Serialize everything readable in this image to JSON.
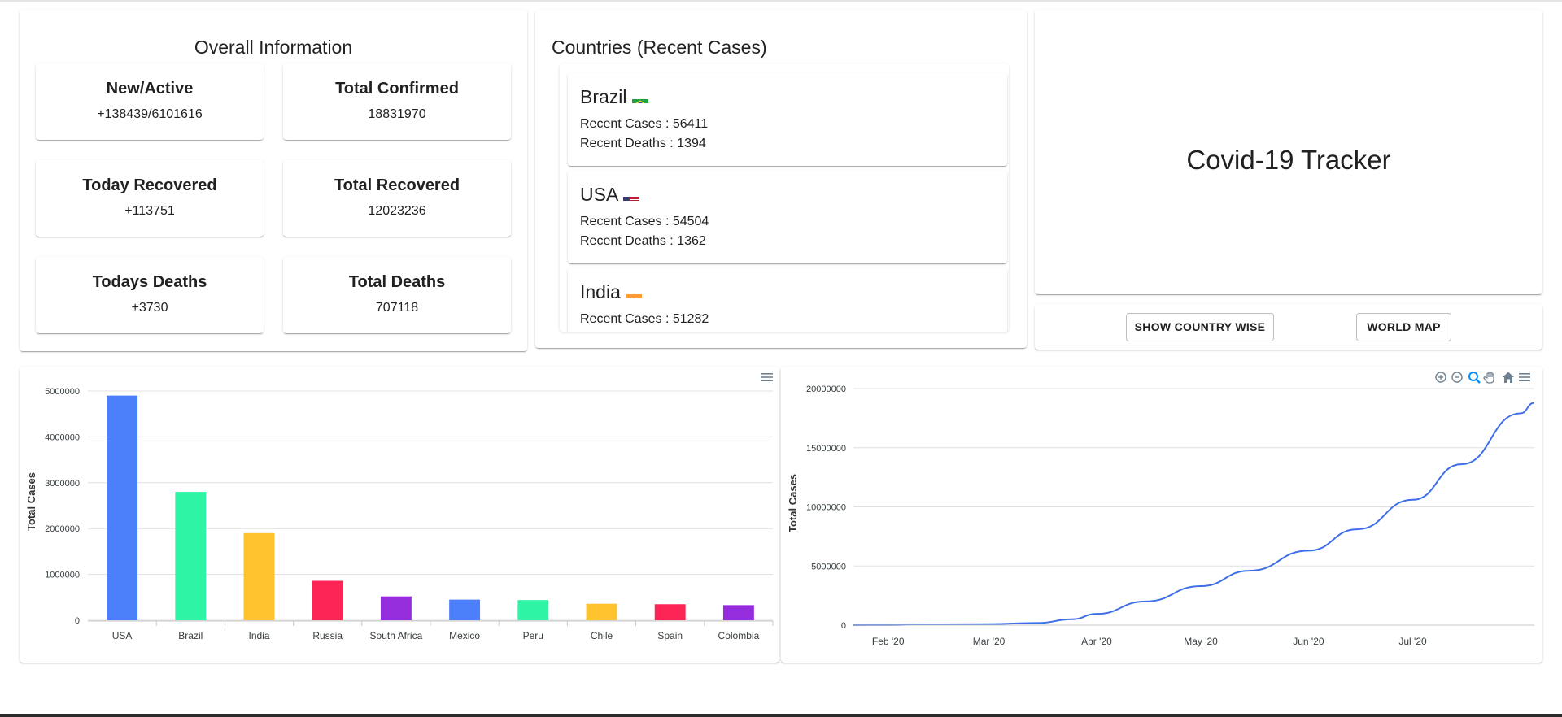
{
  "overall": {
    "title": "Overall Information",
    "stats": [
      {
        "label": "New/Active",
        "value": "+138439/6101616"
      },
      {
        "label": "Total Confirmed",
        "value": "18831970"
      },
      {
        "label": "Today Recovered",
        "value": "+113751"
      },
      {
        "label": "Total Recovered",
        "value": "12023236"
      },
      {
        "label": "Todays Deaths",
        "value": "+3730"
      },
      {
        "label": "Total Deaths",
        "value": "707118"
      }
    ]
  },
  "countries": {
    "title": "Countries (Recent Cases)",
    "items": [
      {
        "name": "Brazil",
        "flag": "brazil-flag-icon",
        "cases_line": "Recent Cases : 56411",
        "deaths_line": "Recent Deaths : 1394"
      },
      {
        "name": "USA",
        "flag": "usa-flag-icon",
        "cases_line": "Recent Cases : 54504",
        "deaths_line": "Recent Deaths : 1362"
      },
      {
        "name": "India",
        "flag": "india-flag-icon",
        "cases_line": "Recent Cases : 51282",
        "deaths_line": ""
      }
    ]
  },
  "tracker": {
    "title": "Covid-19 Tracker"
  },
  "actions": {
    "country_wise_label": "SHOW COUNTRY WISE",
    "world_map_label": "WORLD MAP"
  },
  "toolbar_icons": [
    "zoom-in-icon",
    "zoom-out-icon",
    "zoom-selection-icon",
    "pan-hand-icon",
    "home-reset-icon",
    "menu-icon"
  ],
  "chart_data": [
    {
      "type": "bar",
      "title": "",
      "xlabel": "",
      "ylabel": "Total Cases",
      "categories": [
        "USA",
        "Brazil",
        "India",
        "Russia",
        "South Africa",
        "Mexico",
        "Peru",
        "Chile",
        "Spain",
        "Colombia"
      ],
      "values": [
        4900000,
        2800000,
        1900000,
        860000,
        520000,
        450000,
        440000,
        360000,
        350000,
        330000
      ],
      "colors": [
        "#4c7ffa",
        "#2ef5a5",
        "#fec22e",
        "#fd2456",
        "#952ddc",
        "#4c7ffa",
        "#2ef5a5",
        "#fec22e",
        "#fd2456",
        "#952ddc"
      ],
      "ylim": [
        0,
        5000000
      ],
      "yticks": [
        "0",
        "1000000",
        "2000000",
        "3000000",
        "4000000",
        "5000000"
      ],
      "grid": true
    },
    {
      "type": "line",
      "title": "",
      "xlabel": "",
      "ylabel": "Total Cases",
      "x": [
        "Jan 22 '20",
        "Feb 1 '20",
        "Feb 15 '20",
        "Mar 1 '20",
        "Mar 15 '20",
        "Mar 25 '20",
        "Apr 1 '20",
        "Apr 15 '20",
        "May 1 '20",
        "May 15 '20",
        "Jun 1 '20",
        "Jun 15 '20",
        "Jul 1 '20",
        "Jul 15 '20",
        "Aug 1 '20",
        "Aug 5 '20"
      ],
      "series": [
        {
          "values": [
            0,
            10000,
            70000,
            90000,
            180000,
            500000,
            950000,
            2000000,
            3300000,
            4600000,
            6300000,
            8100000,
            10600000,
            13600000,
            17900000,
            18800000
          ]
        }
      ],
      "xticks": [
        "Feb '20",
        "Mar '20",
        "Apr '20",
        "May '20",
        "Jun '20",
        "Jul '20"
      ],
      "ylim": [
        0,
        20000000
      ],
      "yticks": [
        "0",
        "5000000",
        "10000000",
        "15000000",
        "20000000"
      ],
      "color": "#3f6fe8",
      "grid": true
    }
  ]
}
